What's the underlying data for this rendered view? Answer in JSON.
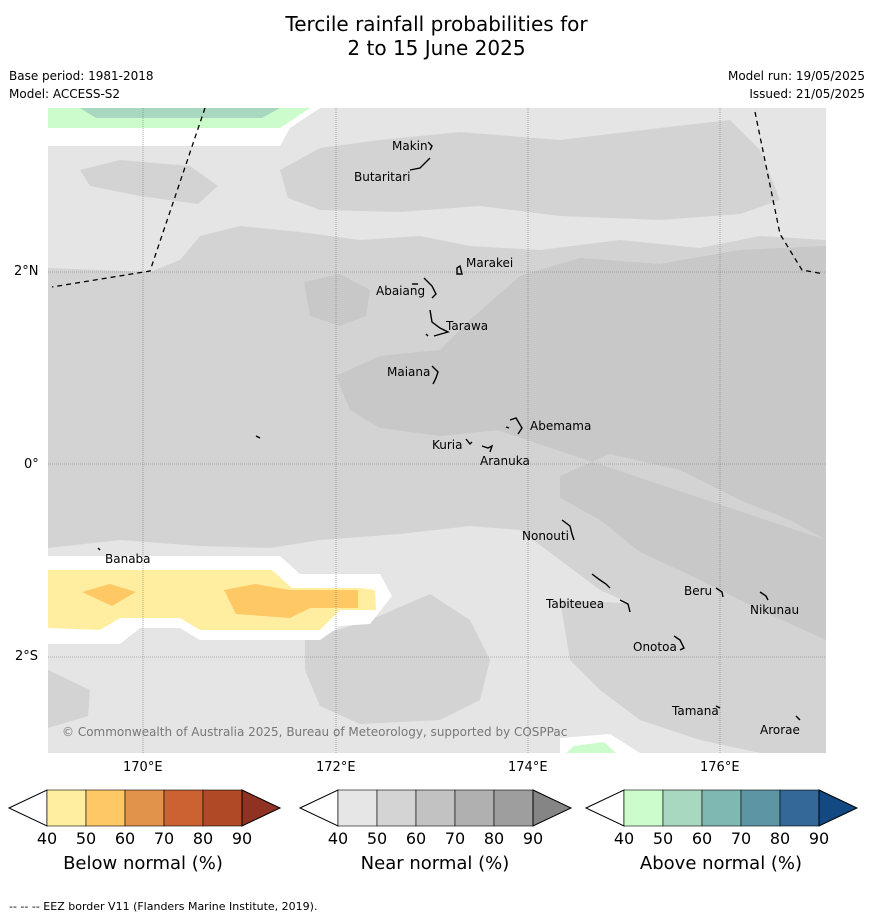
{
  "title_line1": "Tercile rainfall probabilities for",
  "title_line2": "2 to 15 June 2025",
  "base_period": "Base period: 1981-2018",
  "model": "Model: ACCESS-S2",
  "model_run": "Model run: 19/05/2025",
  "issued": "Issued: 21/05/2025",
  "lat_labels": [
    "2°N",
    "0°",
    "2°S"
  ],
  "lon_labels": [
    "170°E",
    "172°E",
    "174°E",
    "176°E"
  ],
  "islands": [
    "Makin",
    "Butaritari",
    "Marakei",
    "Abaiang",
    "Tarawa",
    "Maiana",
    "Abemama",
    "Kuria",
    "Aranuka",
    "Banaba",
    "Nonouti",
    "Tabiteuea",
    "Beru",
    "Nikunau",
    "Onotoa",
    "Tamana",
    "Arorae"
  ],
  "copyright": "© Commonwealth of Australia 2025, Bureau of Meteorology, supported by COSPPac",
  "colorbars": [
    {
      "title": "Below normal (%)",
      "ticks": [
        "40",
        "50",
        "60",
        "70",
        "80",
        "90"
      ],
      "colors": [
        "#ffffff",
        "#ffeda0",
        "#fec965",
        "#e1924b",
        "#cc6232",
        "#b04a26",
        "#8f3222"
      ]
    },
    {
      "title": "Near normal (%)",
      "ticks": [
        "40",
        "50",
        "60",
        "70",
        "80",
        "90"
      ],
      "colors": [
        "#ffffff",
        "#e6e6e6",
        "#d4d4d4",
        "#c2c2c2",
        "#b0b0b0",
        "#9e9e9e",
        "#858585"
      ]
    },
    {
      "title": "Above normal (%)",
      "ticks": [
        "40",
        "50",
        "60",
        "70",
        "80",
        "90"
      ],
      "colors": [
        "#ffffff",
        "#ccfbcc",
        "#a8d8bf",
        "#7fb7b2",
        "#5e95a4",
        "#336899",
        "#134983"
      ]
    }
  ],
  "footer": "--  --  -- EEZ border V11 (Flanders Marine Institute, 2019)."
}
